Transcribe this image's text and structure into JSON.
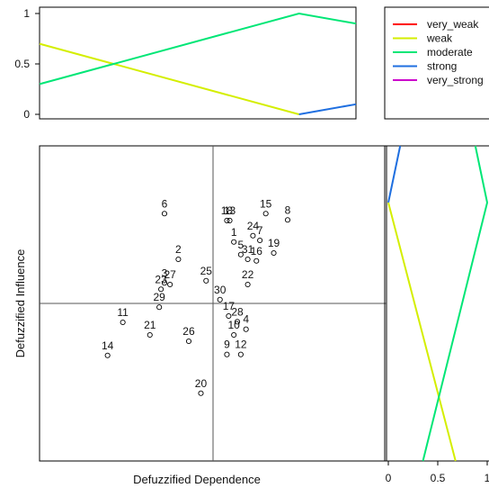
{
  "chart_data": [
    {
      "panel": "top-membership",
      "type": "line",
      "x_range": [
        0,
        1
      ],
      "ylim": [
        0,
        1
      ],
      "yticks": [
        "0",
        "0.5",
        "1"
      ],
      "y_tick_values": [
        0,
        0.5,
        1
      ],
      "series": [
        {
          "name": "weak",
          "color": "#d4ee00",
          "x": [
            0,
            0.82
          ],
          "y": [
            0.7,
            0
          ]
        },
        {
          "name": "moderate",
          "color": "#00e676",
          "x": [
            0,
            0.82,
            1
          ],
          "y": [
            0.3,
            1,
            0.9
          ]
        },
        {
          "name": "strong",
          "color": "#1f6fe0",
          "x": [
            0.82,
            1
          ],
          "y": [
            0,
            0.1
          ]
        }
      ]
    },
    {
      "panel": "legend",
      "type": "legend",
      "entries": [
        {
          "label": "very_weak",
          "color": "#ff0000"
        },
        {
          "label": "weak",
          "color": "#d4ee00"
        },
        {
          "label": "moderate",
          "color": "#00e676"
        },
        {
          "label": "strong",
          "color": "#1f6fe0"
        },
        {
          "label": "very_strong",
          "color": "#cc00cc"
        }
      ]
    },
    {
      "panel": "scatter",
      "type": "scatter",
      "xlabel": "Defuzzified Dependence",
      "ylabel": "Defuzzified Influence",
      "x_range": [
        0,
        1
      ],
      "y_range": [
        0,
        1
      ],
      "reference_lines": {
        "x": 0.5,
        "y": 0.5
      },
      "points": [
        {
          "label": "1",
          "x": 0.56,
          "y": 0.695
        },
        {
          "label": "2",
          "x": 0.4,
          "y": 0.64
        },
        {
          "label": "3",
          "x": 0.36,
          "y": 0.565
        },
        {
          "label": "4",
          "x": 0.595,
          "y": 0.418
        },
        {
          "label": "5",
          "x": 0.58,
          "y": 0.655
        },
        {
          "label": "6",
          "x": 0.36,
          "y": 0.785
        },
        {
          "label": "7",
          "x": 0.635,
          "y": 0.7
        },
        {
          "label": "8",
          "x": 0.715,
          "y": 0.765
        },
        {
          "label": "9",
          "x": 0.54,
          "y": 0.338
        },
        {
          "label": "10",
          "x": 0.56,
          "y": 0.4
        },
        {
          "label": "11",
          "x": 0.24,
          "y": 0.44
        },
        {
          "label": "12",
          "x": 0.58,
          "y": 0.338
        },
        {
          "label": "13",
          "x": 0.548,
          "y": 0.763
        },
        {
          "label": "14",
          "x": 0.196,
          "y": 0.335
        },
        {
          "label": "15",
          "x": 0.652,
          "y": 0.785
        },
        {
          "label": "16",
          "x": 0.625,
          "y": 0.635
        },
        {
          "label": "17",
          "x": 0.545,
          "y": 0.46
        },
        {
          "label": "18",
          "x": 0.54,
          "y": 0.763
        },
        {
          "label": "19",
          "x": 0.675,
          "y": 0.66
        },
        {
          "label": "20",
          "x": 0.465,
          "y": 0.215
        },
        {
          "label": "21",
          "x": 0.318,
          "y": 0.4
        },
        {
          "label": "22",
          "x": 0.6,
          "y": 0.56
        },
        {
          "label": "23",
          "x": 0.35,
          "y": 0.545
        },
        {
          "label": "24",
          "x": 0.615,
          "y": 0.715
        },
        {
          "label": "25",
          "x": 0.48,
          "y": 0.572
        },
        {
          "label": "26",
          "x": 0.43,
          "y": 0.38
        },
        {
          "label": "27",
          "x": 0.376,
          "y": 0.56
        },
        {
          "label": "28",
          "x": 0.57,
          "y": 0.442
        },
        {
          "label": "29",
          "x": 0.345,
          "y": 0.488
        },
        {
          "label": "30",
          "x": 0.52,
          "y": 0.512
        },
        {
          "label": "31",
          "x": 0.6,
          "y": 0.64
        }
      ]
    },
    {
      "panel": "right-membership",
      "type": "line",
      "x_range": [
        0,
        1
      ],
      "xticks": [
        "0",
        "0.5",
        "1"
      ],
      "x_tick_values": [
        0,
        0.5,
        1
      ],
      "series": [
        {
          "name": "strong",
          "color": "#1f6fe0",
          "x": [
            0,
            0.12
          ],
          "y_frac": [
            0.82,
            1
          ]
        },
        {
          "name": "weak",
          "color": "#d4ee00",
          "x": [
            0,
            0.68
          ],
          "y_frac": [
            0.82,
            0
          ]
        },
        {
          "name": "moderate",
          "color": "#00e676",
          "x": [
            0.88,
            1,
            0.35
          ],
          "y_frac": [
            1,
            0.82,
            0
          ]
        }
      ]
    }
  ]
}
